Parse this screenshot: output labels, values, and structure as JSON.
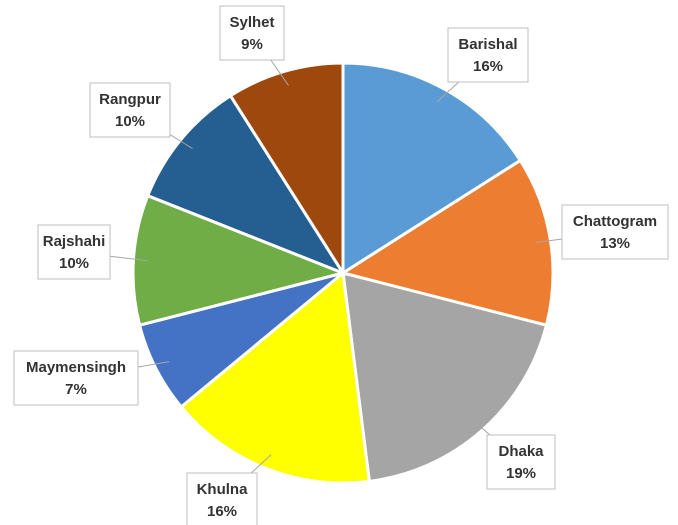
{
  "chart_data": {
    "type": "pie",
    "categories": [
      "Barishal",
      "Chattogram",
      "Dhaka",
      "Khulna",
      "Maymensingh",
      "Rajshahi",
      "Rangpur",
      "Sylhet"
    ],
    "values": [
      16,
      13,
      19,
      16,
      7,
      10,
      10,
      9
    ],
    "value_labels": [
      "16%",
      "13%",
      "19%",
      "16%",
      "7%",
      "10%",
      "10%",
      "9%"
    ],
    "colors": [
      "#5b9bd5",
      "#ed7d31",
      "#a5a5a5",
      "#ffff00",
      "#4472c4",
      "#70ad47",
      "#255e91",
      "#9e480e"
    ]
  }
}
